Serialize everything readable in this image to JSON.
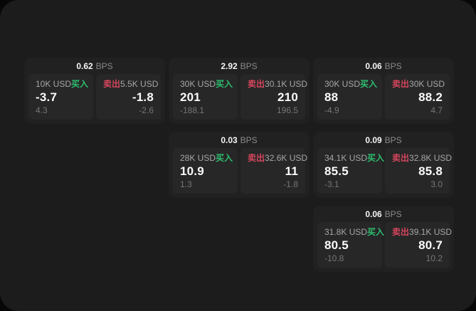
{
  "labels": {
    "bps_suffix": "BPS",
    "buy": "买入",
    "sell": "卖出"
  },
  "colors": {
    "buy_green": "#2ebd70",
    "sell_red": "#d6465d",
    "surface": "#1c1c1c",
    "card_background": "#212121",
    "panel_background": "#272727",
    "page_background": "#070707"
  },
  "cards": [
    {
      "bps": "0.62",
      "buy": {
        "amount": "10K USD",
        "value": "-3.7",
        "sub": "4.3"
      },
      "sell": {
        "amount": "5.5K USD",
        "value": "-1.8",
        "sub": "-2.6"
      }
    },
    {
      "bps": "2.92",
      "buy": {
        "amount": "30K USD",
        "value": "201",
        "sub": "-188.1"
      },
      "sell": {
        "amount": "30.1K USD",
        "value": "210",
        "sub": "196.5"
      }
    },
    {
      "bps": "0.06",
      "buy": {
        "amount": "30K USD",
        "value": "88",
        "sub": "-4.9"
      },
      "sell": {
        "amount": "30K USD",
        "value": "88.2",
        "sub": "4.7"
      }
    },
    {
      "bps": "0.03",
      "buy": {
        "amount": "28K USD",
        "value": "10.9",
        "sub": "1.3"
      },
      "sell": {
        "amount": "32.6K USD",
        "value": "11",
        "sub": "-1.8"
      }
    },
    {
      "bps": "0.09",
      "buy": {
        "amount": "34.1K USD",
        "value": "85.5",
        "sub": "-3.1"
      },
      "sell": {
        "amount": "32.8K USD",
        "value": "85.8",
        "sub": "3.0"
      }
    },
    {
      "bps": "0.06",
      "buy": {
        "amount": "31.8K USD",
        "value": "80.5",
        "sub": "-10.8"
      },
      "sell": {
        "amount": "39.1K USD",
        "value": "80.7",
        "sub": "10.2"
      }
    }
  ]
}
